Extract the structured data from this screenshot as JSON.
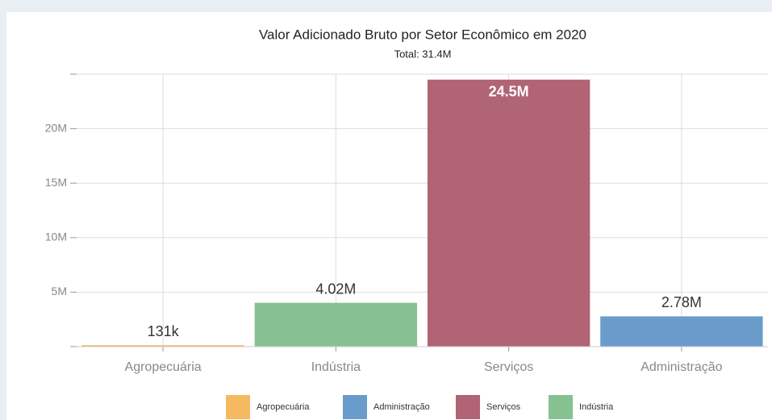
{
  "chart_data": {
    "type": "bar",
    "title": "Valor Adicionado Bruto por Setor Econômico em 2020",
    "subtitle": "Total: 31.4M",
    "categories": [
      "Agropecuária",
      "Indústria",
      "Serviços",
      "Administração"
    ],
    "values": [
      131000,
      4020000,
      24500000,
      2780000
    ],
    "value_labels": [
      "131k",
      "4.02M",
      "24.5M",
      "2.78M"
    ],
    "colors": [
      "#f5b95f",
      "#86c291",
      "#b06474",
      "#6a9ccb"
    ],
    "ylim": [
      0,
      25000000
    ],
    "yticks": [
      {
        "value": 5000000,
        "label": "5M"
      },
      {
        "value": 10000000,
        "label": "10M"
      },
      {
        "value": 15000000,
        "label": "15M"
      },
      {
        "value": 20000000,
        "label": "20M"
      }
    ],
    "grid": true,
    "legend": [
      "Agropecuária",
      "Administração",
      "Serviços",
      "Indústria"
    ]
  }
}
